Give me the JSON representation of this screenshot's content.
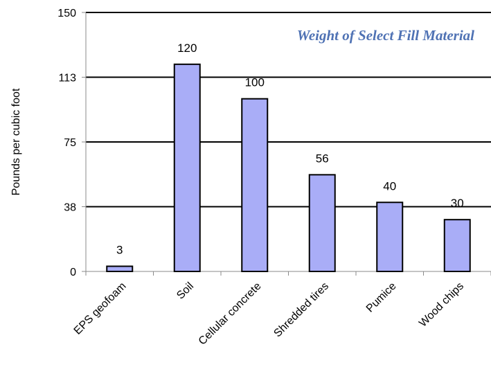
{
  "chart_data": {
    "type": "bar",
    "title": "Weight of Select Fill Material",
    "xlabel": "",
    "ylabel": "Pounds per cubic foot",
    "categories": [
      "EPS geofoam",
      "Soil",
      "Cellular concrete",
      "Shredded tires",
      "Pumice",
      "Wood chips"
    ],
    "values": [
      3,
      120,
      100,
      56,
      40,
      30
    ],
    "data_labels": [
      "3",
      "120",
      "100",
      "56",
      "40",
      "30"
    ],
    "ylim": [
      0,
      150
    ],
    "yticks": [
      0,
      37.5,
      75,
      112.5,
      150
    ],
    "ytick_labels": [
      "0",
      "38",
      "75",
      "113",
      "150"
    ],
    "grid": true,
    "colors": {
      "bar_fill": "#a9adf7",
      "bar_stroke": "#000000",
      "title": "#4f72b4",
      "gridline": "#000000"
    }
  }
}
